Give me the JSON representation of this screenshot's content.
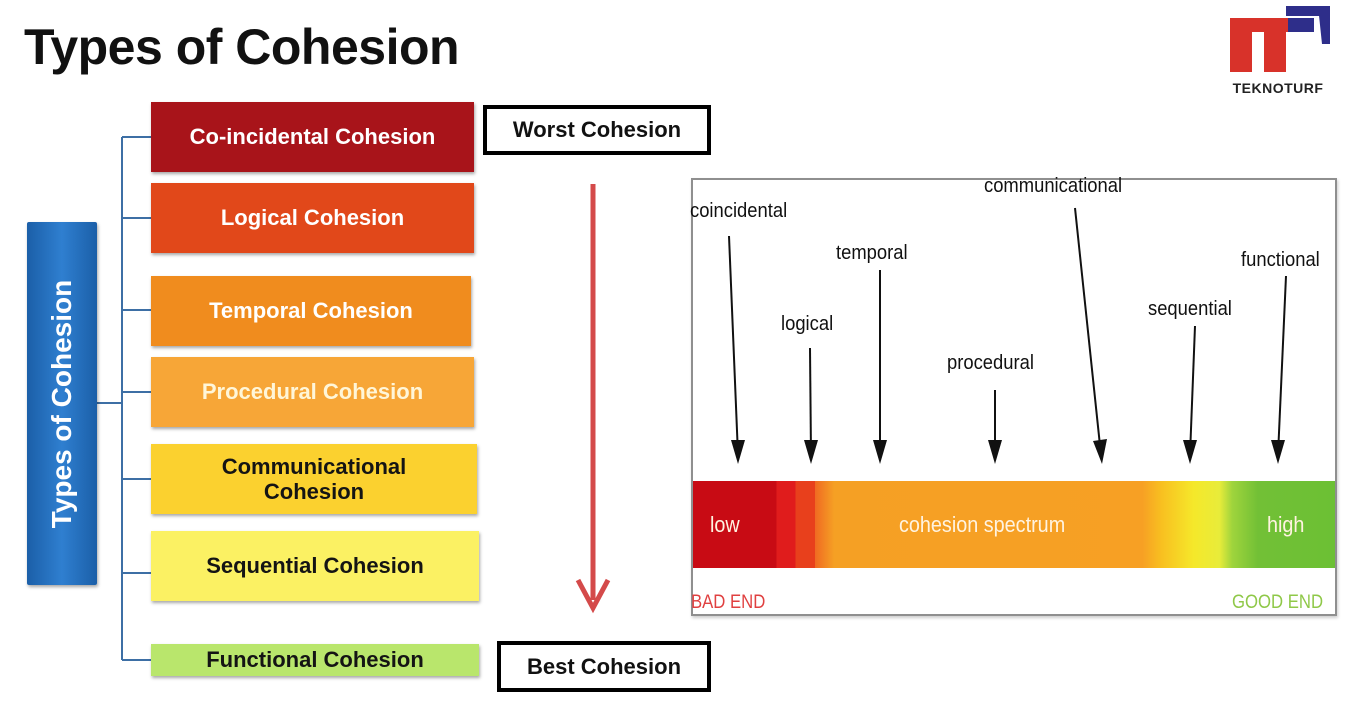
{
  "page": {
    "title": "Types of Cohesion"
  },
  "logo": {
    "text": "TEKNOTURF"
  },
  "diagram": {
    "root_label": "Types of Cohesion",
    "types": [
      {
        "label": "Co-incidental  Cohesion",
        "fill": "#a8141a",
        "text_color": "#ffffff"
      },
      {
        "label": "Logical Cohesion",
        "fill": "#e1481a",
        "text_color": "#ffffff"
      },
      {
        "label": "Temporal Cohesion",
        "fill": "#f08c1e",
        "text_color": "#ffffff"
      },
      {
        "label": "Procedural Cohesion",
        "fill": "#f7a637",
        "text_color": "#fff6d8"
      },
      {
        "label": "Communicational Cohesion",
        "fill": "#fbd12f",
        "text_color": "#141414"
      },
      {
        "label": "Sequential Cohesion",
        "fill": "#fbf163",
        "text_color": "#141414"
      },
      {
        "label": "Functional Cohesion",
        "fill": "#b9e66c",
        "text_color": "#141414"
      }
    ],
    "worst_label": "Worst Cohesion",
    "best_label": "Best Cohesion",
    "arrow_color": "#d44a4a",
    "connector_color": "#3d6fa5"
  },
  "spectrum": {
    "labels": [
      "coincidental",
      "logical",
      "temporal",
      "procedural",
      "communicational",
      "sequential",
      "functional"
    ],
    "bar_low": "low",
    "bar_mid": "cohesion spectrum",
    "bar_high": "high",
    "bad_end": "BAD END",
    "good_end": "GOOD END",
    "bad_color": "#e04040",
    "good_color": "#8fc848"
  }
}
